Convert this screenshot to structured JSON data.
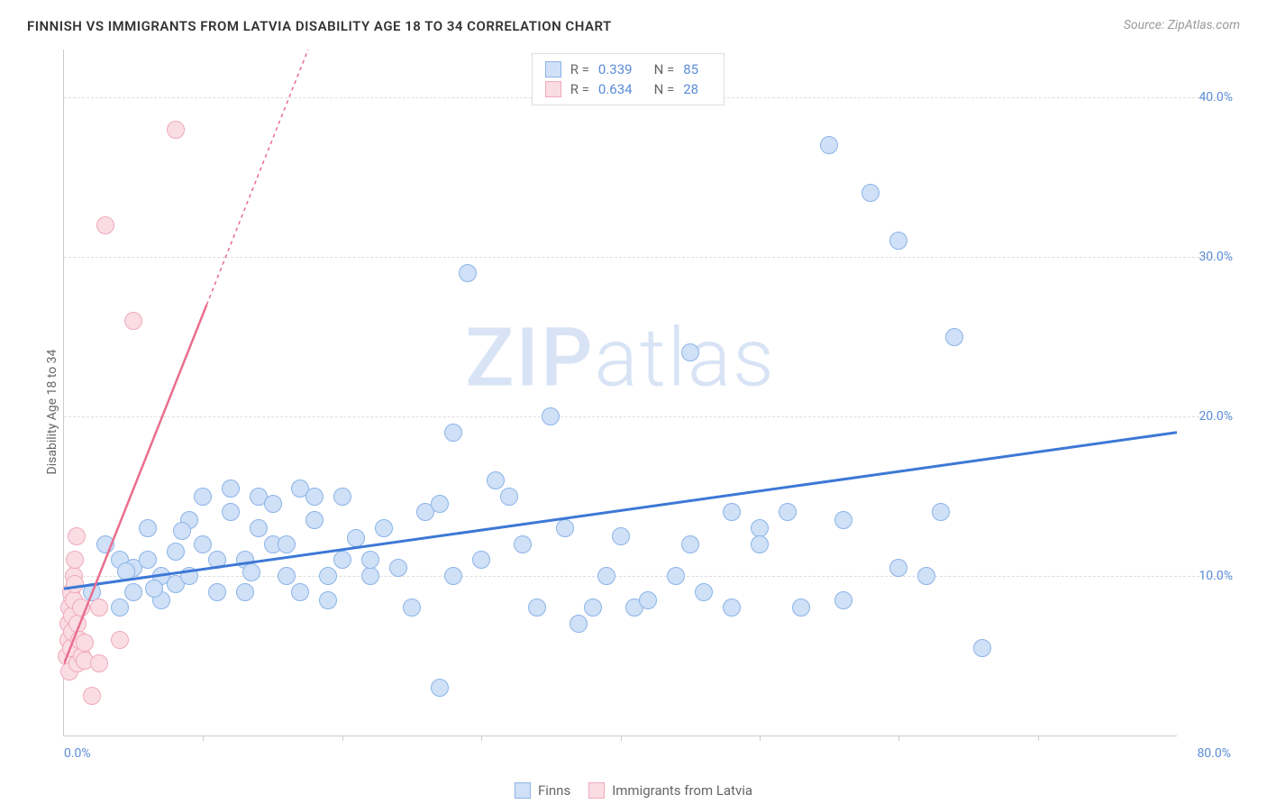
{
  "title": "FINNISH VS IMMIGRANTS FROM LATVIA DISABILITY AGE 18 TO 34 CORRELATION CHART",
  "source": "Source: ZipAtlas.com",
  "y_axis_label": "Disability Age 18 to 34",
  "watermark": {
    "part1": "ZIP",
    "part2": "atlas"
  },
  "chart": {
    "type": "scatter",
    "x_range": [
      0,
      80
    ],
    "y_range": [
      0,
      43
    ],
    "background_color": "#ffffff",
    "grid_color": "#dddddd",
    "axis_color": "#cccccc",
    "tick_label_color": "#5b8dd6",
    "y_ticks": [
      10,
      20,
      30,
      40
    ],
    "y_tick_labels": [
      "10.0%",
      "20.0%",
      "30.0%",
      "40.0%"
    ],
    "x_minor_ticks": [
      10,
      20,
      30,
      40,
      50,
      60,
      70
    ],
    "x_left_label": "0.0%",
    "x_right_label": "80.0%",
    "point_radius": 10,
    "series": [
      {
        "id": "finns",
        "label": "Finns",
        "color_fill": "#cfe0f7",
        "color_stroke": "#8cb4e8",
        "R": "0.339",
        "N": "85",
        "trend": {
          "color": "#3d78d6",
          "width": 3,
          "y_at_x0": 9.2,
          "y_at_xmax": 19.0,
          "dash_after_x": 80
        },
        "points": [
          [
            2,
            9
          ],
          [
            3,
            12
          ],
          [
            4,
            8
          ],
          [
            4,
            11
          ],
          [
            5,
            10.5
          ],
          [
            5,
            9
          ],
          [
            6,
            13
          ],
          [
            6,
            11
          ],
          [
            7,
            10
          ],
          [
            7,
            8.5
          ],
          [
            8,
            11.5
          ],
          [
            8,
            9.5
          ],
          [
            9,
            10
          ],
          [
            9,
            13.5
          ],
          [
            10,
            15
          ],
          [
            10,
            12
          ],
          [
            11,
            11
          ],
          [
            11,
            9
          ],
          [
            12,
            14
          ],
          [
            12,
            15.5
          ],
          [
            13,
            11
          ],
          [
            13,
            9
          ],
          [
            14,
            15
          ],
          [
            14,
            13
          ],
          [
            15,
            12
          ],
          [
            15,
            14.5
          ],
          [
            16,
            12
          ],
          [
            16,
            10
          ],
          [
            17,
            9
          ],
          [
            17,
            15.5
          ],
          [
            18,
            15
          ],
          [
            18,
            13.5
          ],
          [
            19,
            10
          ],
          [
            19,
            8.5
          ],
          [
            20,
            11
          ],
          [
            20,
            15
          ],
          [
            22,
            10
          ],
          [
            22,
            11
          ],
          [
            23,
            13
          ],
          [
            24,
            10.5
          ],
          [
            25,
            8
          ],
          [
            26,
            14
          ],
          [
            27,
            14.5
          ],
          [
            27,
            3
          ],
          [
            28,
            19
          ],
          [
            28,
            10
          ],
          [
            29,
            29
          ],
          [
            30,
            11
          ],
          [
            31,
            16
          ],
          [
            32,
            15
          ],
          [
            33,
            12
          ],
          [
            34,
            8
          ],
          [
            35,
            20
          ],
          [
            36,
            13
          ],
          [
            37,
            7
          ],
          [
            38,
            8
          ],
          [
            39,
            10
          ],
          [
            40,
            12.5
          ],
          [
            41,
            8
          ],
          [
            42,
            8.5
          ],
          [
            44,
            10
          ],
          [
            45,
            24
          ],
          [
            45,
            12
          ],
          [
            46,
            9
          ],
          [
            48,
            14
          ],
          [
            48,
            8
          ],
          [
            50,
            13
          ],
          [
            50,
            12
          ],
          [
            52,
            14
          ],
          [
            53,
            8
          ],
          [
            55,
            37
          ],
          [
            56,
            13.5
          ],
          [
            56,
            8.5
          ],
          [
            58,
            34
          ],
          [
            60,
            31
          ],
          [
            60,
            10.5
          ],
          [
            62,
            10
          ],
          [
            63,
            14
          ],
          [
            64,
            25
          ],
          [
            66,
            5.5
          ],
          [
            4.5,
            10.3
          ],
          [
            6.5,
            9.2
          ],
          [
            8.5,
            12.8
          ],
          [
            13.5,
            10.2
          ],
          [
            21,
            12.4
          ]
        ]
      },
      {
        "id": "latvia",
        "label": "Immigrants from Latvia",
        "color_fill": "#fadde4",
        "color_stroke": "#f0a9ba",
        "R": "0.634",
        "N": "28",
        "trend": {
          "color": "#e86e8e",
          "width": 2.5,
          "y_at_x0": 4.5,
          "y_at_xmax": 180,
          "solid_until_y": 27,
          "dash_after_y": 27
        },
        "points": [
          [
            0.2,
            5
          ],
          [
            0.3,
            6
          ],
          [
            0.3,
            7
          ],
          [
            0.4,
            8
          ],
          [
            0.4,
            4
          ],
          [
            0.5,
            9
          ],
          [
            0.5,
            5.5
          ],
          [
            0.6,
            6.5
          ],
          [
            0.6,
            7.5
          ],
          [
            0.7,
            8.5
          ],
          [
            0.7,
            10
          ],
          [
            0.8,
            9.5
          ],
          [
            0.8,
            11
          ],
          [
            0.9,
            12.5
          ],
          [
            1,
            7
          ],
          [
            1,
            4.5
          ],
          [
            1.1,
            6
          ],
          [
            1.2,
            8
          ],
          [
            1.3,
            5
          ],
          [
            1.5,
            4.7
          ],
          [
            1.5,
            5.8
          ],
          [
            2,
            2.5
          ],
          [
            2.5,
            8
          ],
          [
            2.5,
            4.5
          ],
          [
            3,
            32
          ],
          [
            4,
            6
          ],
          [
            5,
            26
          ],
          [
            8,
            38
          ]
        ]
      }
    ]
  },
  "legend_top": {
    "r_label": "R =",
    "n_label": "N ="
  }
}
